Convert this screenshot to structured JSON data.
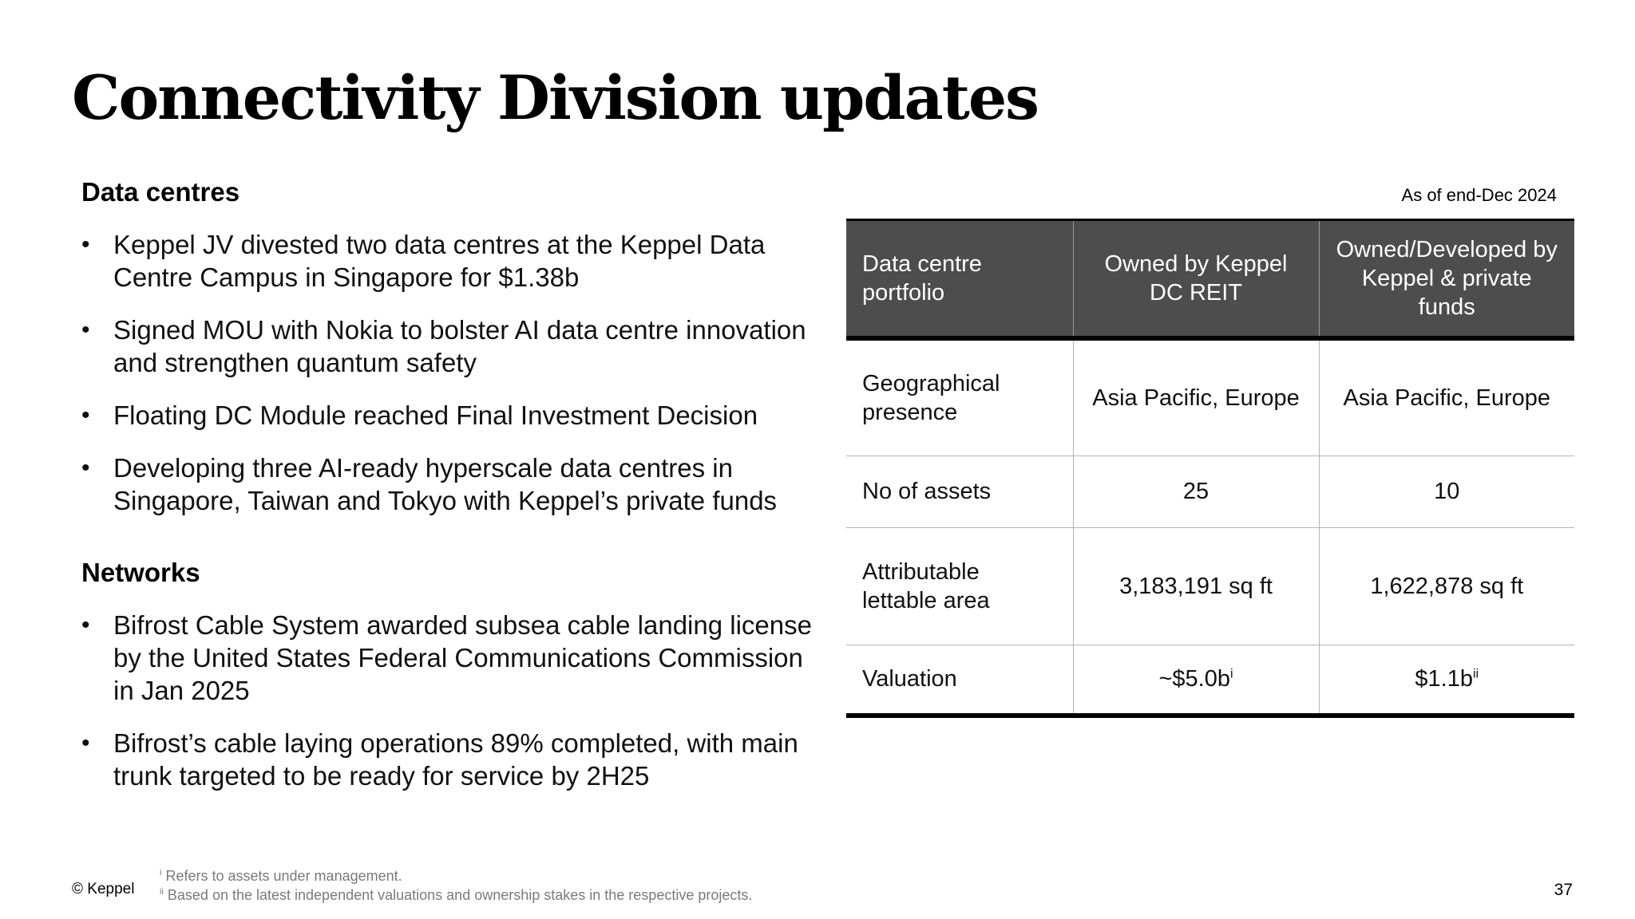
{
  "title": "Connectivity Division updates",
  "left": {
    "sections": [
      {
        "heading": "Data centres",
        "bullets": [
          "Keppel JV divested two data centres at the Keppel Data Centre Campus in Singapore for $1.38b",
          "Signed MOU with Nokia to bolster AI data centre innovation and strengthen quantum safety",
          "Floating DC Module reached Final Investment Decision",
          "Developing three AI-ready hyperscale data centres in Singapore, Taiwan and Tokyo with Keppel’s private funds"
        ]
      },
      {
        "heading": "Networks",
        "bullets": [
          "Bifrost Cable System awarded subsea cable landing license by the United States Federal Communications Commission in Jan 2025",
          "Bifrost’s cable laying operations 89% completed, with main trunk targeted to be ready for service by 2H25"
        ]
      }
    ]
  },
  "table": {
    "as_of": "As of end-Dec 2024",
    "headers": [
      "Data centre portfolio",
      "Owned by Keppel DC REIT",
      "Owned/Developed by Keppel & private funds"
    ],
    "rows": [
      {
        "label": "Geographical presence",
        "reit": "Asia Pacific, Europe",
        "private": "Asia Pacific, Europe"
      },
      {
        "label": "No of assets",
        "reit": "25",
        "private": "10"
      },
      {
        "label": "Attributable lettable area",
        "reit": "3,183,191 sq ft",
        "private": "1,622,878 sq ft"
      },
      {
        "label": "Valuation",
        "reit": "~$5.0b",
        "reit_sup": "i",
        "private": "$1.1b",
        "private_sup": "ii"
      }
    ]
  },
  "footer": {
    "copyright": "© Keppel",
    "footnotes": [
      {
        "marker": "i",
        "text": "Refers to assets under management."
      },
      {
        "marker": "ii",
        "text": "Based on the latest independent valuations and ownership stakes in the respective projects."
      }
    ],
    "page_number": "37"
  }
}
